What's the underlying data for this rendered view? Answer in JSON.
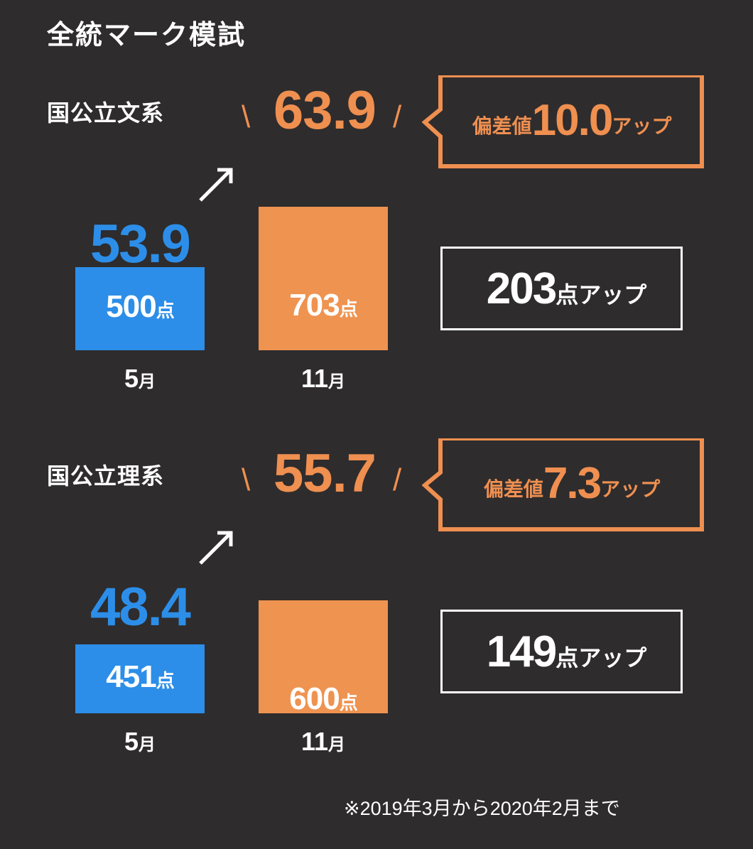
{
  "header": {
    "title": "全統マーク模試"
  },
  "chart_data": [
    {
      "type": "bar",
      "title": "国公立文系",
      "categories": [
        "5月",
        "11月"
      ],
      "values": [
        500,
        703
      ],
      "deviation": [
        53.9,
        63.9
      ],
      "point_unit": "点",
      "deviation_increase_label": "偏差値",
      "deviation_increase": "10.0",
      "increase_suffix": "アップ",
      "points_increase": 203
    },
    {
      "type": "bar",
      "title": "国公立理系",
      "categories": [
        "5月",
        "11月"
      ],
      "values": [
        451,
        600
      ],
      "deviation": [
        48.4,
        55.7
      ],
      "point_unit": "点",
      "deviation_increase_label": "偏差値",
      "deviation_increase": "7.3",
      "increase_suffix": "アップ",
      "points_increase": 149
    }
  ],
  "month_char": "月",
  "slash_left": "\\",
  "slash_right": "/",
  "footnote": "※2019年3月から2020年2月まで",
  "colors": {
    "background": "#2e2c2d",
    "before": "#2c8ee8",
    "after": "#ef9350",
    "accent": "#ef8f50",
    "text": "#ffffff"
  }
}
